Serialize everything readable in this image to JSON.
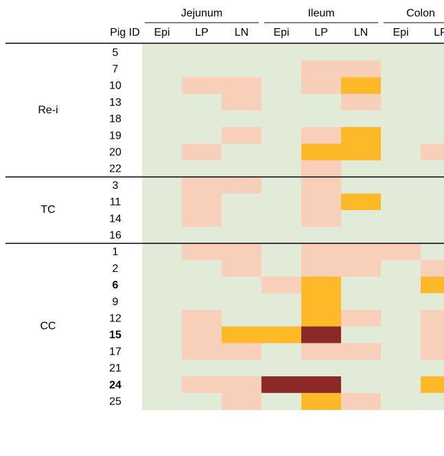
{
  "chart_data": {
    "type": "heatmap",
    "title": "",
    "regions": [
      {
        "name": "Jejunum",
        "columns": [
          "Epi",
          "LP",
          "LN"
        ]
      },
      {
        "name": "Ileum",
        "columns": [
          "Epi",
          "LP",
          "LN"
        ]
      },
      {
        "name": "Colon",
        "columns": [
          "Epi",
          "LP"
        ]
      }
    ],
    "row_header": "Pig ID",
    "columns": [
      "Epi",
      "LP",
      "LN",
      "Epi",
      "LP",
      "LN",
      "Epi",
      "LP"
    ],
    "levels": {
      "0": "#e2ead8",
      "1": "#f8cfb8",
      "2": "#fdb928",
      "3": "#8b2828"
    },
    "groups": [
      {
        "name": "Re-i",
        "rows": [
          {
            "id": "5",
            "bold": false,
            "values": [
              0,
              0,
              0,
              0,
              0,
              0,
              0,
              0
            ]
          },
          {
            "id": "7",
            "bold": false,
            "values": [
              0,
              0,
              0,
              0,
              1,
              1,
              0,
              0
            ]
          },
          {
            "id": "10",
            "bold": false,
            "values": [
              0,
              1,
              1,
              0,
              1,
              2,
              0,
              0
            ]
          },
          {
            "id": "13",
            "bold": false,
            "values": [
              0,
              0,
              1,
              0,
              0,
              1,
              0,
              0
            ]
          },
          {
            "id": "18",
            "bold": false,
            "values": [
              0,
              0,
              0,
              0,
              0,
              0,
              0,
              0
            ]
          },
          {
            "id": "19",
            "bold": false,
            "values": [
              0,
              0,
              1,
              0,
              1,
              2,
              0,
              0
            ]
          },
          {
            "id": "20",
            "bold": false,
            "values": [
              0,
              1,
              0,
              0,
              2,
              2,
              0,
              1
            ]
          },
          {
            "id": "22",
            "bold": false,
            "values": [
              0,
              0,
              0,
              0,
              1,
              0,
              0,
              0
            ]
          }
        ]
      },
      {
        "name": "TC",
        "rows": [
          {
            "id": "3",
            "bold": false,
            "values": [
              0,
              1,
              1,
              0,
              1,
              0,
              0,
              0
            ]
          },
          {
            "id": "11",
            "bold": false,
            "values": [
              0,
              1,
              0,
              0,
              1,
              2,
              0,
              0
            ]
          },
          {
            "id": "14",
            "bold": false,
            "values": [
              0,
              1,
              0,
              0,
              1,
              0,
              0,
              0
            ]
          },
          {
            "id": "16",
            "bold": false,
            "values": [
              0,
              0,
              0,
              0,
              0,
              0,
              0,
              0
            ]
          }
        ]
      },
      {
        "name": "CC",
        "rows": [
          {
            "id": "1",
            "bold": false,
            "values": [
              0,
              1,
              1,
              0,
              1,
              1,
              1,
              0
            ]
          },
          {
            "id": "2",
            "bold": false,
            "values": [
              0,
              0,
              1,
              0,
              1,
              1,
              0,
              1
            ]
          },
          {
            "id": "6",
            "bold": true,
            "values": [
              0,
              0,
              0,
              1,
              2,
              0,
              0,
              2
            ]
          },
          {
            "id": "9",
            "bold": false,
            "values": [
              0,
              0,
              0,
              0,
              2,
              0,
              0,
              0
            ]
          },
          {
            "id": "12",
            "bold": false,
            "values": [
              0,
              1,
              0,
              0,
              2,
              1,
              0,
              1
            ]
          },
          {
            "id": "15",
            "bold": true,
            "values": [
              0,
              1,
              2,
              2,
              3,
              0,
              0,
              1
            ]
          },
          {
            "id": "17",
            "bold": false,
            "values": [
              0,
              1,
              1,
              0,
              1,
              1,
              0,
              1
            ]
          },
          {
            "id": "21",
            "bold": false,
            "values": [
              0,
              0,
              0,
              0,
              0,
              0,
              0,
              0
            ]
          },
          {
            "id": "24",
            "bold": true,
            "values": [
              0,
              1,
              1,
              3,
              3,
              0,
              0,
              2
            ]
          },
          {
            "id": "25",
            "bold": false,
            "values": [
              0,
              0,
              1,
              0,
              2,
              1,
              0,
              0
            ]
          }
        ]
      }
    ]
  }
}
